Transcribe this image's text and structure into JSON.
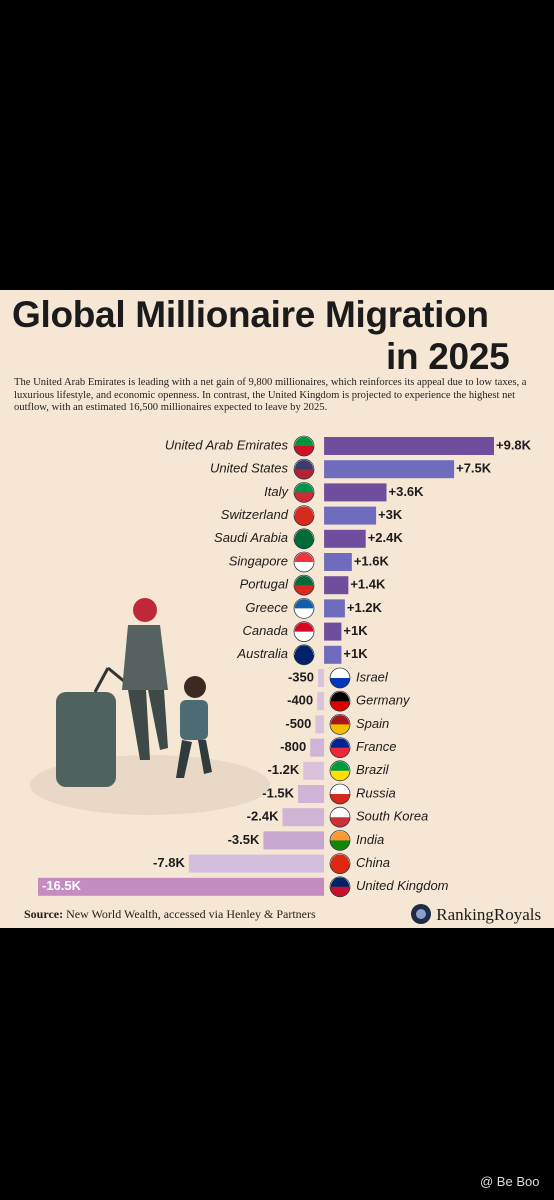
{
  "chart_data": {
    "type": "bar",
    "orientation": "horizontal",
    "title": "Global Millionaire Migration",
    "title_line2": "in 2025",
    "subtitle": "The United Arab Emirates is leading with a net gain of 9,800 millionaires, which reinforces its appeal due to low taxes, a luxurious lifestyle, and economic openness. In contrast, the United Kingdom is projected to experience the highest net outflow, with an estimated 16,500 millionaires expected to leave by 2025.",
    "categories": [
      "United Arab Emirates",
      "United States",
      "Italy",
      "Switzerland",
      "Saudi Arabia",
      "Singapore",
      "Portugal",
      "Greece",
      "Canada",
      "Australia",
      "Israel",
      "Germany",
      "Spain",
      "France",
      "Brazil",
      "Russia",
      "South Korea",
      "India",
      "China",
      "United Kingdom"
    ],
    "values": [
      9800,
      7500,
      3600,
      3000,
      2400,
      1600,
      1400,
      1200,
      1000,
      1000,
      -350,
      -400,
      -500,
      -800,
      -1200,
      -1500,
      -2400,
      -3500,
      -7800,
      -16500
    ],
    "value_labels": [
      "+9.8K",
      "+7.5K",
      "+3.6K",
      "+3K",
      "+2.4K",
      "+1.6K",
      "+1.4K",
      "+1.2K",
      "+1K",
      "+1K",
      "-350",
      "-400",
      "-500",
      "-800",
      "-1.2K",
      "-1.5K",
      "-2.4K",
      "-3.5K",
      "-7.8K",
      "-16.5K"
    ],
    "colors": [
      "#6e4f9e",
      "#6f6bbd",
      "#6e4f9e",
      "#6f6bbd",
      "#6e4f9e",
      "#6f6bbd",
      "#6e4f9e",
      "#6f6bbd",
      "#6e4f9e",
      "#6f6bbd",
      "#d9c3dc",
      "#d9c3dc",
      "#d9c3dc",
      "#cfb4d6",
      "#d9c3dc",
      "#cfb4d6",
      "#cfb4d6",
      "#c7a6cf",
      "#d3bedd",
      "#c58cc2"
    ],
    "source_label": "Source:",
    "source": "New World Wealth, accessed via Henley & Partners",
    "brand": "RankingRoyals",
    "watermark": "@ Be Boo"
  }
}
